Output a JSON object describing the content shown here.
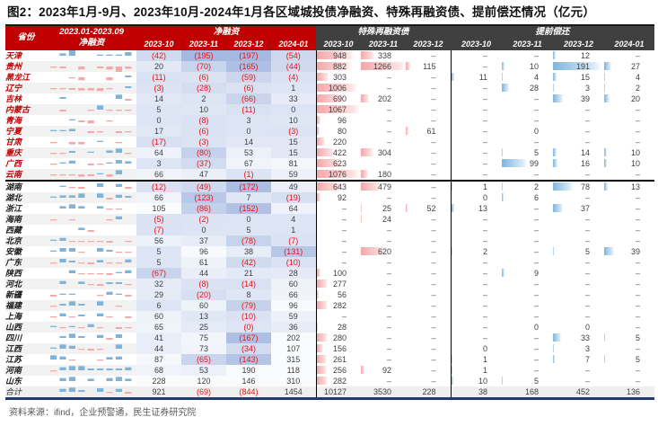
{
  "title": "图2：2023年1月-9月、2023年10月-2024年1月各区域城投债净融资、特殊再融资债、提前偿还情况（亿元）",
  "source": "资料来源：ifind，企业预警通，民生证券研究院",
  "header": {
    "province": "省份",
    "spark_line1": "2023.01-2023.09",
    "spark_line2": "净融资",
    "net_group": "净融资",
    "special_group": "特殊再融资债",
    "early_group": "提前偿还",
    "net_months": [
      "2023-10",
      "2023-11",
      "2023-12",
      "2024-01"
    ],
    "special_months": [
      "2023-10",
      "2023-11",
      "2023-12"
    ],
    "early_months": [
      "2023-10",
      "2023-11",
      "2023-12",
      "2024-01"
    ]
  },
  "colors": {
    "header_red": "#C00000",
    "header_dark": "#404040",
    "negative_text": "#EE1111",
    "positive_text": "#3F3F3F",
    "heatmap_dark": "#7E9AD4",
    "special_bar": "#F5A6A8",
    "early_bar": "#7FB5DE",
    "bottom_rule": "#203A6E",
    "spark_pos": "#7EB3DC",
    "spark_neg": "#F4A9A9"
  },
  "chart_data": {
    "type": "table",
    "unit": "亿元",
    "note": "net列中括号值为负数；special=特殊再融资债(2023-10/11/12)；early=提前偿还(2023-10/11/12,2024-01)；spark为2023.01-2023.09月度净融资迷你柱状图相对值",
    "highlighted_rows": 12,
    "rows": [
      {
        "name": "天津",
        "spark": [
          0,
          3,
          9,
          0,
          0,
          1,
          1,
          1,
          5
        ],
        "net": [
          "(42)",
          "(195)",
          "(197)",
          "(54)"
        ],
        "special": [
          948,
          338,
          null
        ],
        "early": [
          null,
          null,
          12,
          null
        ]
      },
      {
        "name": "贵州",
        "spark": [
          -1,
          -2,
          0,
          -4,
          0,
          -2,
          -4,
          -8,
          -3
        ],
        "net": [
          "20",
          "(70)",
          "(165)",
          "(44)"
        ],
        "special": [
          882,
          1266,
          115
        ],
        "early": [
          null,
          10,
          191,
          27
        ]
      },
      {
        "name": "黑龙江",
        "spark": [
          0,
          0,
          -1,
          -4,
          0,
          0,
          -4,
          0,
          2
        ],
        "net": [
          "(11)",
          "(6)",
          "(59)",
          "(4)"
        ],
        "special": [
          303,
          null,
          null
        ],
        "early": [
          11,
          4,
          15,
          4
        ]
      },
      {
        "name": "辽宁",
        "spark": [
          -1,
          -1,
          -2,
          -3,
          -3,
          -4,
          -1,
          0,
          2
        ],
        "net": [
          "(3)",
          "(28)",
          "(6)",
          "1"
        ],
        "special": [
          1006,
          null,
          null
        ],
        "early": [
          null,
          28,
          3,
          2
        ]
      },
      {
        "name": "吉林",
        "spark": [
          0,
          2,
          0,
          0,
          0,
          0,
          0,
          6,
          -2
        ],
        "net": [
          "14",
          "2",
          "(66)",
          "33"
        ],
        "special": [
          690,
          202,
          null
        ],
        "early": [
          null,
          null,
          39,
          20
        ]
      },
      {
        "name": "内蒙古",
        "spark": [
          0,
          -2,
          0,
          0,
          -1,
          6,
          -1,
          -1,
          -1
        ],
        "net": [
          "5",
          "10",
          "(11)",
          "0"
        ],
        "special": [
          1067,
          null,
          null
        ],
        "early": [
          null,
          null,
          null,
          null
        ]
      },
      {
        "name": "青海",
        "spark": [
          0,
          0,
          1,
          -2,
          -4,
          0,
          -1,
          0,
          0
        ],
        "net": [
          "0",
          "(8)",
          "3",
          "10"
        ],
        "special": [
          96,
          null,
          null
        ],
        "early": [
          null,
          null,
          null,
          null
        ]
      },
      {
        "name": "宁夏",
        "spark": [
          1,
          1,
          3,
          0,
          -2,
          -1,
          0,
          -2,
          -1
        ],
        "net": [
          "17",
          "(6)",
          "0",
          "(3)"
        ],
        "special": [
          80,
          null,
          61
        ],
        "early": [
          null,
          0,
          null,
          null
        ]
      },
      {
        "name": "甘肃",
        "spark": [
          -1,
          0,
          -3,
          -3,
          0,
          1,
          0,
          -1,
          0
        ],
        "net": [
          "(17)",
          "(3)",
          "14",
          "15"
        ],
        "special": [
          220,
          null,
          null
        ],
        "early": [
          null,
          null,
          null,
          null
        ]
      },
      {
        "name": "重庆",
        "spark": [
          -1,
          -1,
          2,
          0,
          1,
          0,
          3,
          6,
          -1
        ],
        "net": [
          "64",
          "(80)",
          "53",
          "15"
        ],
        "special": [
          422,
          304,
          null
        ],
        "early": [
          null,
          5,
          14,
          10
        ]
      },
      {
        "name": "广西",
        "spark": [
          -1,
          1,
          4,
          0,
          -2,
          -1,
          1,
          5,
          3
        ],
        "net": [
          "3",
          "(37)",
          "67",
          "81"
        ],
        "special": [
          623,
          null,
          null
        ],
        "early": [
          null,
          99,
          16,
          10
        ]
      },
      {
        "name": "云南",
        "spark": [
          -1,
          -1,
          -1,
          -3,
          -2,
          1,
          -3,
          6,
          0
        ],
        "net": [
          "66",
          "47",
          "(1)",
          "59"
        ],
        "special": [
          1076,
          180,
          null
        ],
        "early": [
          null,
          null,
          null,
          null
        ]
      },
      {
        "name": "湖南",
        "divider": true,
        "spark": [
          0,
          1,
          -1,
          -2,
          0,
          5,
          0,
          4,
          -2
        ],
        "net": [
          "(12)",
          "(49)",
          "(172)",
          "49"
        ],
        "special": [
          643,
          479,
          null
        ],
        "early": [
          1,
          2,
          78,
          13
        ]
      },
      {
        "name": "湖北",
        "spark": [
          1,
          3,
          3,
          6,
          0,
          6,
          -2,
          4,
          2
        ],
        "net": [
          "66",
          "(123)",
          "7",
          "(19)"
        ],
        "special": [
          92,
          null,
          null
        ],
        "early": [
          0,
          6,
          null,
          null
        ]
      },
      {
        "name": "浙江",
        "spark": [
          0,
          3,
          6,
          3,
          0,
          3,
          -1,
          -1,
          0
        ],
        "net": [
          "105",
          "(86)",
          "(152)",
          "64"
        ],
        "special": [
          null,
          25,
          52
        ],
        "early": [
          13,
          null,
          37,
          null
        ]
      },
      {
        "name": "海南",
        "spark": [
          -1,
          0,
          -1,
          0,
          0,
          0,
          -1,
          4,
          0
        ],
        "net": [
          "(5)",
          "(2)",
          "0",
          "4"
        ],
        "special": [
          null,
          24,
          null
        ],
        "early": [
          null,
          null,
          null,
          null
        ]
      },
      {
        "name": "西藏",
        "spark": [
          0,
          0,
          0,
          3,
          -2,
          0,
          0,
          0,
          0
        ],
        "net": [
          "(7)",
          "0",
          "5",
          "1"
        ],
        "special": [
          null,
          null,
          null
        ],
        "early": [
          null,
          null,
          null,
          null
        ]
      },
      {
        "name": "北京",
        "spark": [
          1,
          4,
          -1,
          -1,
          -1,
          -1,
          -2,
          0,
          -1
        ],
        "net": [
          "56",
          "37",
          "(78)",
          "(7)"
        ],
        "special": [
          null,
          null,
          null
        ],
        "early": [
          null,
          null,
          null,
          null
        ]
      },
      {
        "name": "安徽",
        "spark": [
          1,
          5,
          5,
          -1,
          0,
          5,
          2,
          -1,
          -1
        ],
        "net": [
          "5",
          "96",
          "38",
          "(131)"
        ],
        "special": [
          null,
          620,
          null
        ],
        "early": [
          2,
          null,
          5,
          39
        ]
      },
      {
        "name": "广东",
        "spark": [
          -1,
          5,
          2,
          -1,
          -2,
          3,
          -1,
          -1,
          4
        ],
        "net": [
          "5",
          "61",
          "(42)",
          "(10)"
        ],
        "special": [
          null,
          null,
          null
        ],
        "early": [
          null,
          null,
          null,
          null
        ]
      },
      {
        "name": "陕西",
        "spark": [
          0,
          0,
          4,
          -1,
          -1,
          -1,
          -2,
          1,
          4
        ],
        "net": [
          "(67)",
          "44",
          "21",
          "28"
        ],
        "special": [
          100,
          null,
          null
        ],
        "early": [
          null,
          9,
          null,
          null
        ]
      },
      {
        "name": "河北",
        "spark": [
          0,
          4,
          0,
          3,
          -1,
          -2,
          2,
          2,
          -1
        ],
        "net": [
          "32",
          "(8)",
          "(14)",
          "60"
        ],
        "special": [
          277,
          null,
          null
        ],
        "early": [
          null,
          null,
          null,
          null
        ]
      },
      {
        "name": "新疆",
        "spark": [
          -2,
          1,
          1,
          0,
          0,
          -1,
          4,
          1,
          -2
        ],
        "net": [
          "29",
          "(20)",
          "8",
          "66"
        ],
        "special": [
          56,
          null,
          null
        ],
        "early": [
          null,
          null,
          null,
          null
        ]
      },
      {
        "name": "福建",
        "spark": [
          -1,
          2,
          6,
          2,
          0,
          6,
          0,
          -1,
          0
        ],
        "net": [
          "6",
          "60",
          "(79)",
          "96"
        ],
        "special": [
          282,
          null,
          null
        ],
        "early": [
          null,
          null,
          null,
          null
        ]
      },
      {
        "name": "上海",
        "spark": [
          -1,
          4,
          -1,
          2,
          0,
          4,
          -1,
          0,
          -2
        ],
        "net": [
          "60",
          "13",
          "(10)",
          "59"
        ],
        "special": [
          null,
          null,
          null
        ],
        "early": [
          null,
          null,
          null,
          null
        ]
      },
      {
        "name": "山西",
        "spark": [
          1,
          -1,
          1,
          -1,
          4,
          -1,
          0,
          -2,
          -1
        ],
        "net": [
          "65",
          "25",
          "(0)",
          "36"
        ],
        "special": [
          28,
          null,
          null
        ],
        "early": [
          null,
          0,
          0,
          null
        ]
      },
      {
        "name": "四川",
        "spark": [
          0,
          2,
          6,
          2,
          0,
          4,
          -2,
          5,
          0
        ],
        "net": [
          "41",
          "75",
          "(167)",
          "202"
        ],
        "special": [
          280,
          null,
          null
        ],
        "early": [
          null,
          null,
          33,
          5
        ]
      },
      {
        "name": "江西",
        "spark": [
          1,
          6,
          4,
          -1,
          -2,
          -1,
          0,
          6,
          0
        ],
        "net": [
          "44",
          "73",
          "(34)",
          "107"
        ],
        "special": [
          156,
          null,
          null
        ],
        "early": [
          0,
          null,
          3,
          null
        ]
      },
      {
        "name": "江苏",
        "spark": [
          6,
          4,
          -1,
          0,
          0,
          -1,
          3,
          4,
          0
        ],
        "net": [
          "87",
          "(65)",
          "(143)",
          "315"
        ],
        "special": [
          261,
          null,
          null
        ],
        "early": [
          1,
          null,
          7,
          5
        ]
      },
      {
        "name": "河南",
        "spark": [
          -1,
          4,
          6,
          6,
          2,
          2,
          2,
          2,
          4
        ],
        "net": [
          "68",
          "53",
          "190",
          "118"
        ],
        "special": [
          256,
          92,
          null
        ],
        "early": [
          1,
          null,
          null,
          null
        ]
      },
      {
        "name": "山东",
        "spark": [
          0,
          4,
          6,
          0,
          3,
          0,
          4,
          6,
          3
        ],
        "net": [
          "228",
          "120",
          "146",
          "310"
        ],
        "special": [
          282,
          null,
          null
        ],
        "early": [
          10,
          5,
          null,
          null
        ]
      },
      {
        "name": "合计",
        "total": true,
        "spark": [
          0,
          4,
          6,
          2,
          0,
          5,
          -1,
          4,
          -2
        ],
        "net": [
          "921",
          "(69)",
          "(844)",
          "1454"
        ],
        "special": [
          10127,
          3530,
          228
        ],
        "early": [
          38,
          168,
          452,
          136
        ]
      }
    ]
  }
}
